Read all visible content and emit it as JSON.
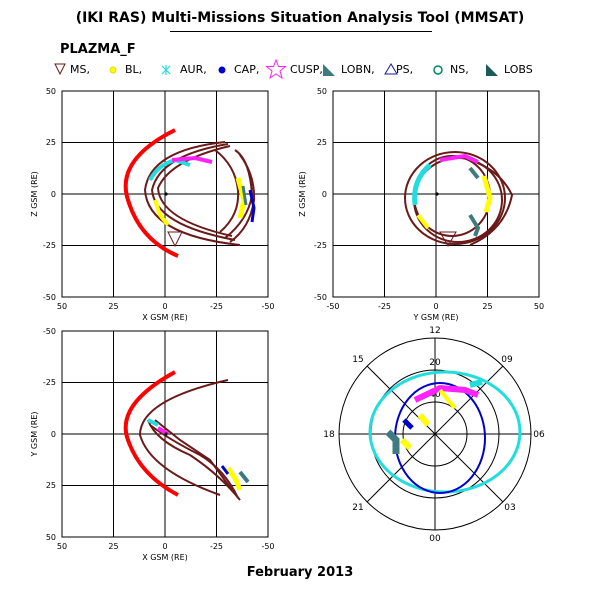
{
  "window": {
    "title": "(IKI RAS) Multi-Missions Situation Analysis Tool (MMSAT)",
    "footer": "February 2013"
  },
  "legend": {
    "mission": "PLAZMA_F",
    "items": [
      {
        "label": "MS,",
        "icon": "triangle-down-outline",
        "color": "#6b1a1a"
      },
      {
        "label": "BL,",
        "icon": "filled-dot",
        "color": "#ffff00"
      },
      {
        "label": "AUR,",
        "icon": "asterisk",
        "color": "#22dddd"
      },
      {
        "label": "CAP,",
        "icon": "filled-dot",
        "color": "#0000cc"
      },
      {
        "label": "CUSP,",
        "icon": "star-outline",
        "color": "#ff22ff"
      },
      {
        "label": "LOBN,",
        "icon": "right-triangle-filled",
        "color": "#3d7b80"
      },
      {
        "label": "PS,",
        "icon": "triangle-up-outline",
        "color": "#1a1a99"
      },
      {
        "label": "NS,",
        "icon": "circle-outline",
        "color": "#008866"
      },
      {
        "label": "LOBS",
        "icon": "right-triangle-filled",
        "color": "#1a5a5a"
      }
    ]
  },
  "panels": {
    "xz": {
      "xlabel": "X GSM (RE)",
      "ylabel": "Z GSM (RE)",
      "xticks": [
        "50",
        "25",
        "0",
        "-25",
        "-50"
      ],
      "yticks": [
        "50",
        "25",
        "0",
        "-25",
        "-50"
      ]
    },
    "yz": {
      "xlabel": "Y GSM (RE)",
      "ylabel": "Z GSM (RE)",
      "xticks": [
        "-50",
        "-25",
        "0",
        "25",
        "50"
      ],
      "yticks": [
        "50",
        "25",
        "0",
        "-25",
        "-50"
      ]
    },
    "xy": {
      "xlabel": "X GSM (RE)",
      "ylabel": "Y GSM (RE)",
      "xticks": [
        "50",
        "25",
        "0",
        "-25",
        "-50"
      ],
      "yticks": [
        "-50",
        "-25",
        "0",
        "25",
        "50"
      ]
    },
    "polar": {
      "labels": [
        "12",
        "09",
        "06",
        "03",
        "00",
        "21",
        "18",
        "15"
      ],
      "rings": [
        "20",
        "40"
      ]
    }
  },
  "colors": {
    "orbit": "#6b1a1a",
    "magnetopause": "#ff0000",
    "yellow": "#ffff00",
    "cyan": "#22dddd",
    "blue": "#0000cc",
    "magenta": "#ff22ff",
    "teal": "#3d7b80",
    "polar_outer": "#22dddd",
    "polar_inner": "#0000cc"
  }
}
